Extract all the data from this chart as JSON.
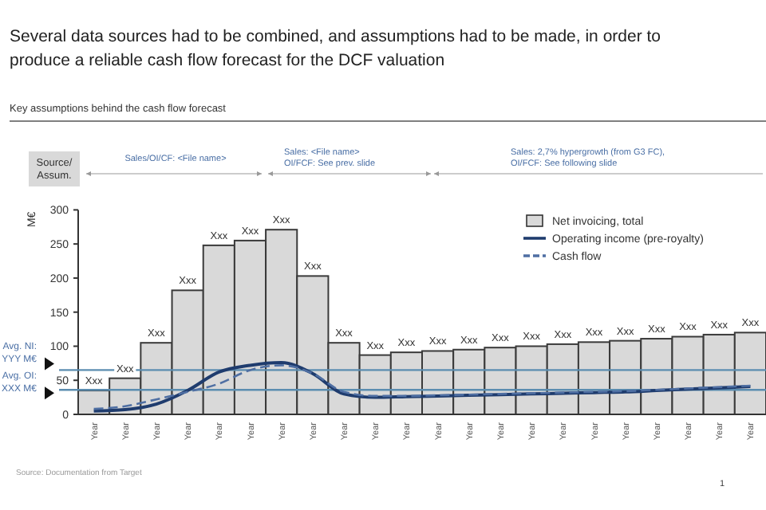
{
  "chart_data": {
    "type": "bar",
    "title": "Several data sources had to be combined, and assumptions had to be made, in order to produce a reliable cash flow forecast for the DCF valuation",
    "subtitle": "Key assumptions behind the cash flow forecast",
    "ylabel": "M€",
    "categories": [
      "Year",
      "Year",
      "Year",
      "Year",
      "Year",
      "Year",
      "Year",
      "Year",
      "Year",
      "Year",
      "Year",
      "Year",
      "Year",
      "Year",
      "Year",
      "Year",
      "Year",
      "Year",
      "Year",
      "Year",
      "Year",
      "Year"
    ],
    "series": [
      {
        "name": "Net invoicing, total",
        "color": "#d9d9d9",
        "values": [
          35,
          53,
          105,
          182,
          248,
          255,
          271,
          203,
          105,
          87,
          91,
          93,
          95,
          98,
          100,
          103,
          106,
          108,
          111,
          114,
          117,
          120
        ],
        "value_labels": [
          "Xxx",
          "Xxx",
          "Xxx",
          "Xxx",
          "Xxx",
          "Xxx",
          "Xxx",
          "Xxx",
          "Xxx",
          "Xxx",
          "Xxx",
          "Xxx",
          "Xxx",
          "Xxx",
          "Xxx",
          "Xxx",
          "Xxx",
          "Xxx",
          "Xxx",
          "Xxx",
          "Xxx",
          "Xxx"
        ]
      },
      {
        "name": "Operating income (pre-royalty)",
        "type": "line",
        "color": "#1f3c6e",
        "line_style": "solid",
        "values": [
          5,
          7,
          15,
          35,
          62,
          72,
          76,
          60,
          30,
          25,
          26,
          27,
          28,
          29,
          30,
          31,
          32,
          33,
          35,
          37,
          39,
          41
        ]
      },
      {
        "name": "Cash flow",
        "type": "line",
        "color": "#4f6fa3",
        "line_style": "dashed",
        "values": [
          8,
          12,
          22,
          33,
          45,
          65,
          72,
          60,
          33,
          27,
          27,
          28,
          29,
          30,
          31,
          32,
          33,
          34,
          36,
          38,
          40,
          42
        ]
      }
    ],
    "ylim": [
      0,
      300
    ],
    "yticks": [
      0,
      50,
      100,
      150,
      200,
      250,
      300
    ],
    "grid": false,
    "legend": "top right",
    "ref_lines": [
      {
        "axis": "y",
        "value": 65,
        "label": "Avg. NI: YYY M€",
        "color": "#5b8db0"
      },
      {
        "axis": "y",
        "value": 36,
        "label": "Avg. OI: XXX M€",
        "color": "#5b8db0"
      }
    ],
    "annotations": [
      "Source/ Assum.",
      "Sales/OI/CF: <File name>",
      "Sales: <File name>",
      "OI/FCF: See prev. slide",
      "Sales: 2,7% hypergrowth (from G3 FC),",
      "OI/FCF: See following slide",
      "Source: Documentation from Target",
      "1"
    ]
  }
}
